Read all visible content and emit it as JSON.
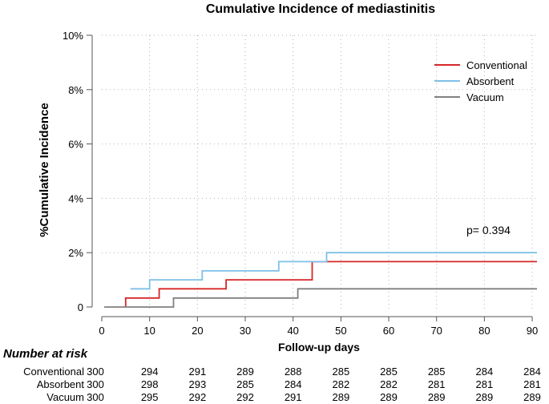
{
  "chart_data": {
    "type": "line",
    "step": true,
    "title": "Cumulative Incidence of mediastinitis",
    "xlabel": "Follow-up days",
    "ylabel": "%Cumulative Incidence",
    "xlim": [
      0,
      91
    ],
    "ylim": [
      0,
      10
    ],
    "xticks": [
      0,
      10,
      20,
      30,
      40,
      50,
      60,
      70,
      80,
      90
    ],
    "xtick_labels": [
      "0",
      "10",
      "20",
      "30",
      "40",
      "50",
      "60",
      "70",
      "80",
      "90"
    ],
    "yticks": [
      0,
      2,
      4,
      6,
      8,
      10
    ],
    "ytick_labels": [
      "0",
      "2%",
      "4%",
      "6%",
      "8%",
      "10%"
    ],
    "grid": "dotted",
    "legend_position": "top-right",
    "series": [
      {
        "name": "Conventional",
        "color": "#d62728",
        "points": [
          [
            5,
            0
          ],
          [
            5,
            0.33
          ],
          [
            12,
            0.33
          ],
          [
            12,
            0.67
          ],
          [
            26,
            0.67
          ],
          [
            26,
            1.0
          ],
          [
            44,
            1.0
          ],
          [
            44,
            1.67
          ],
          [
            91,
            1.67
          ]
        ]
      },
      {
        "name": "Absorbent",
        "color": "#7ec0e8",
        "points": [
          [
            6,
            0.67
          ],
          [
            10,
            0.67
          ],
          [
            10,
            1.0
          ],
          [
            21,
            1.0
          ],
          [
            21,
            1.33
          ],
          [
            37,
            1.33
          ],
          [
            37,
            1.67
          ],
          [
            47,
            1.67
          ],
          [
            47,
            2.0
          ],
          [
            91,
            2.0
          ]
        ]
      },
      {
        "name": "Vacuum",
        "color": "#808080",
        "points": [
          [
            0.5,
            0
          ],
          [
            15,
            0
          ],
          [
            15,
            0.33
          ],
          [
            41,
            0.33
          ],
          [
            41,
            0.67
          ],
          [
            91,
            0.67
          ]
        ]
      }
    ],
    "annotation": "p=  0.394",
    "risk_table": {
      "title": "Number at risk",
      "times": [
        0,
        10,
        20,
        30,
        40,
        50,
        60,
        70,
        80,
        90
      ],
      "rows": [
        {
          "label": "Conventional",
          "values": [
            "300",
            "294",
            "291",
            "289",
            "288",
            "285",
            "285",
            "285",
            "284",
            "284"
          ]
        },
        {
          "label": "Absorbent",
          "values": [
            "300",
            "298",
            "293",
            "285",
            "284",
            "282",
            "282",
            "281",
            "281",
            "281"
          ]
        },
        {
          "label": "Vacuum",
          "values": [
            "300",
            "295",
            "292",
            "292",
            "291",
            "289",
            "289",
            "289",
            "289",
            "289"
          ]
        }
      ]
    }
  }
}
